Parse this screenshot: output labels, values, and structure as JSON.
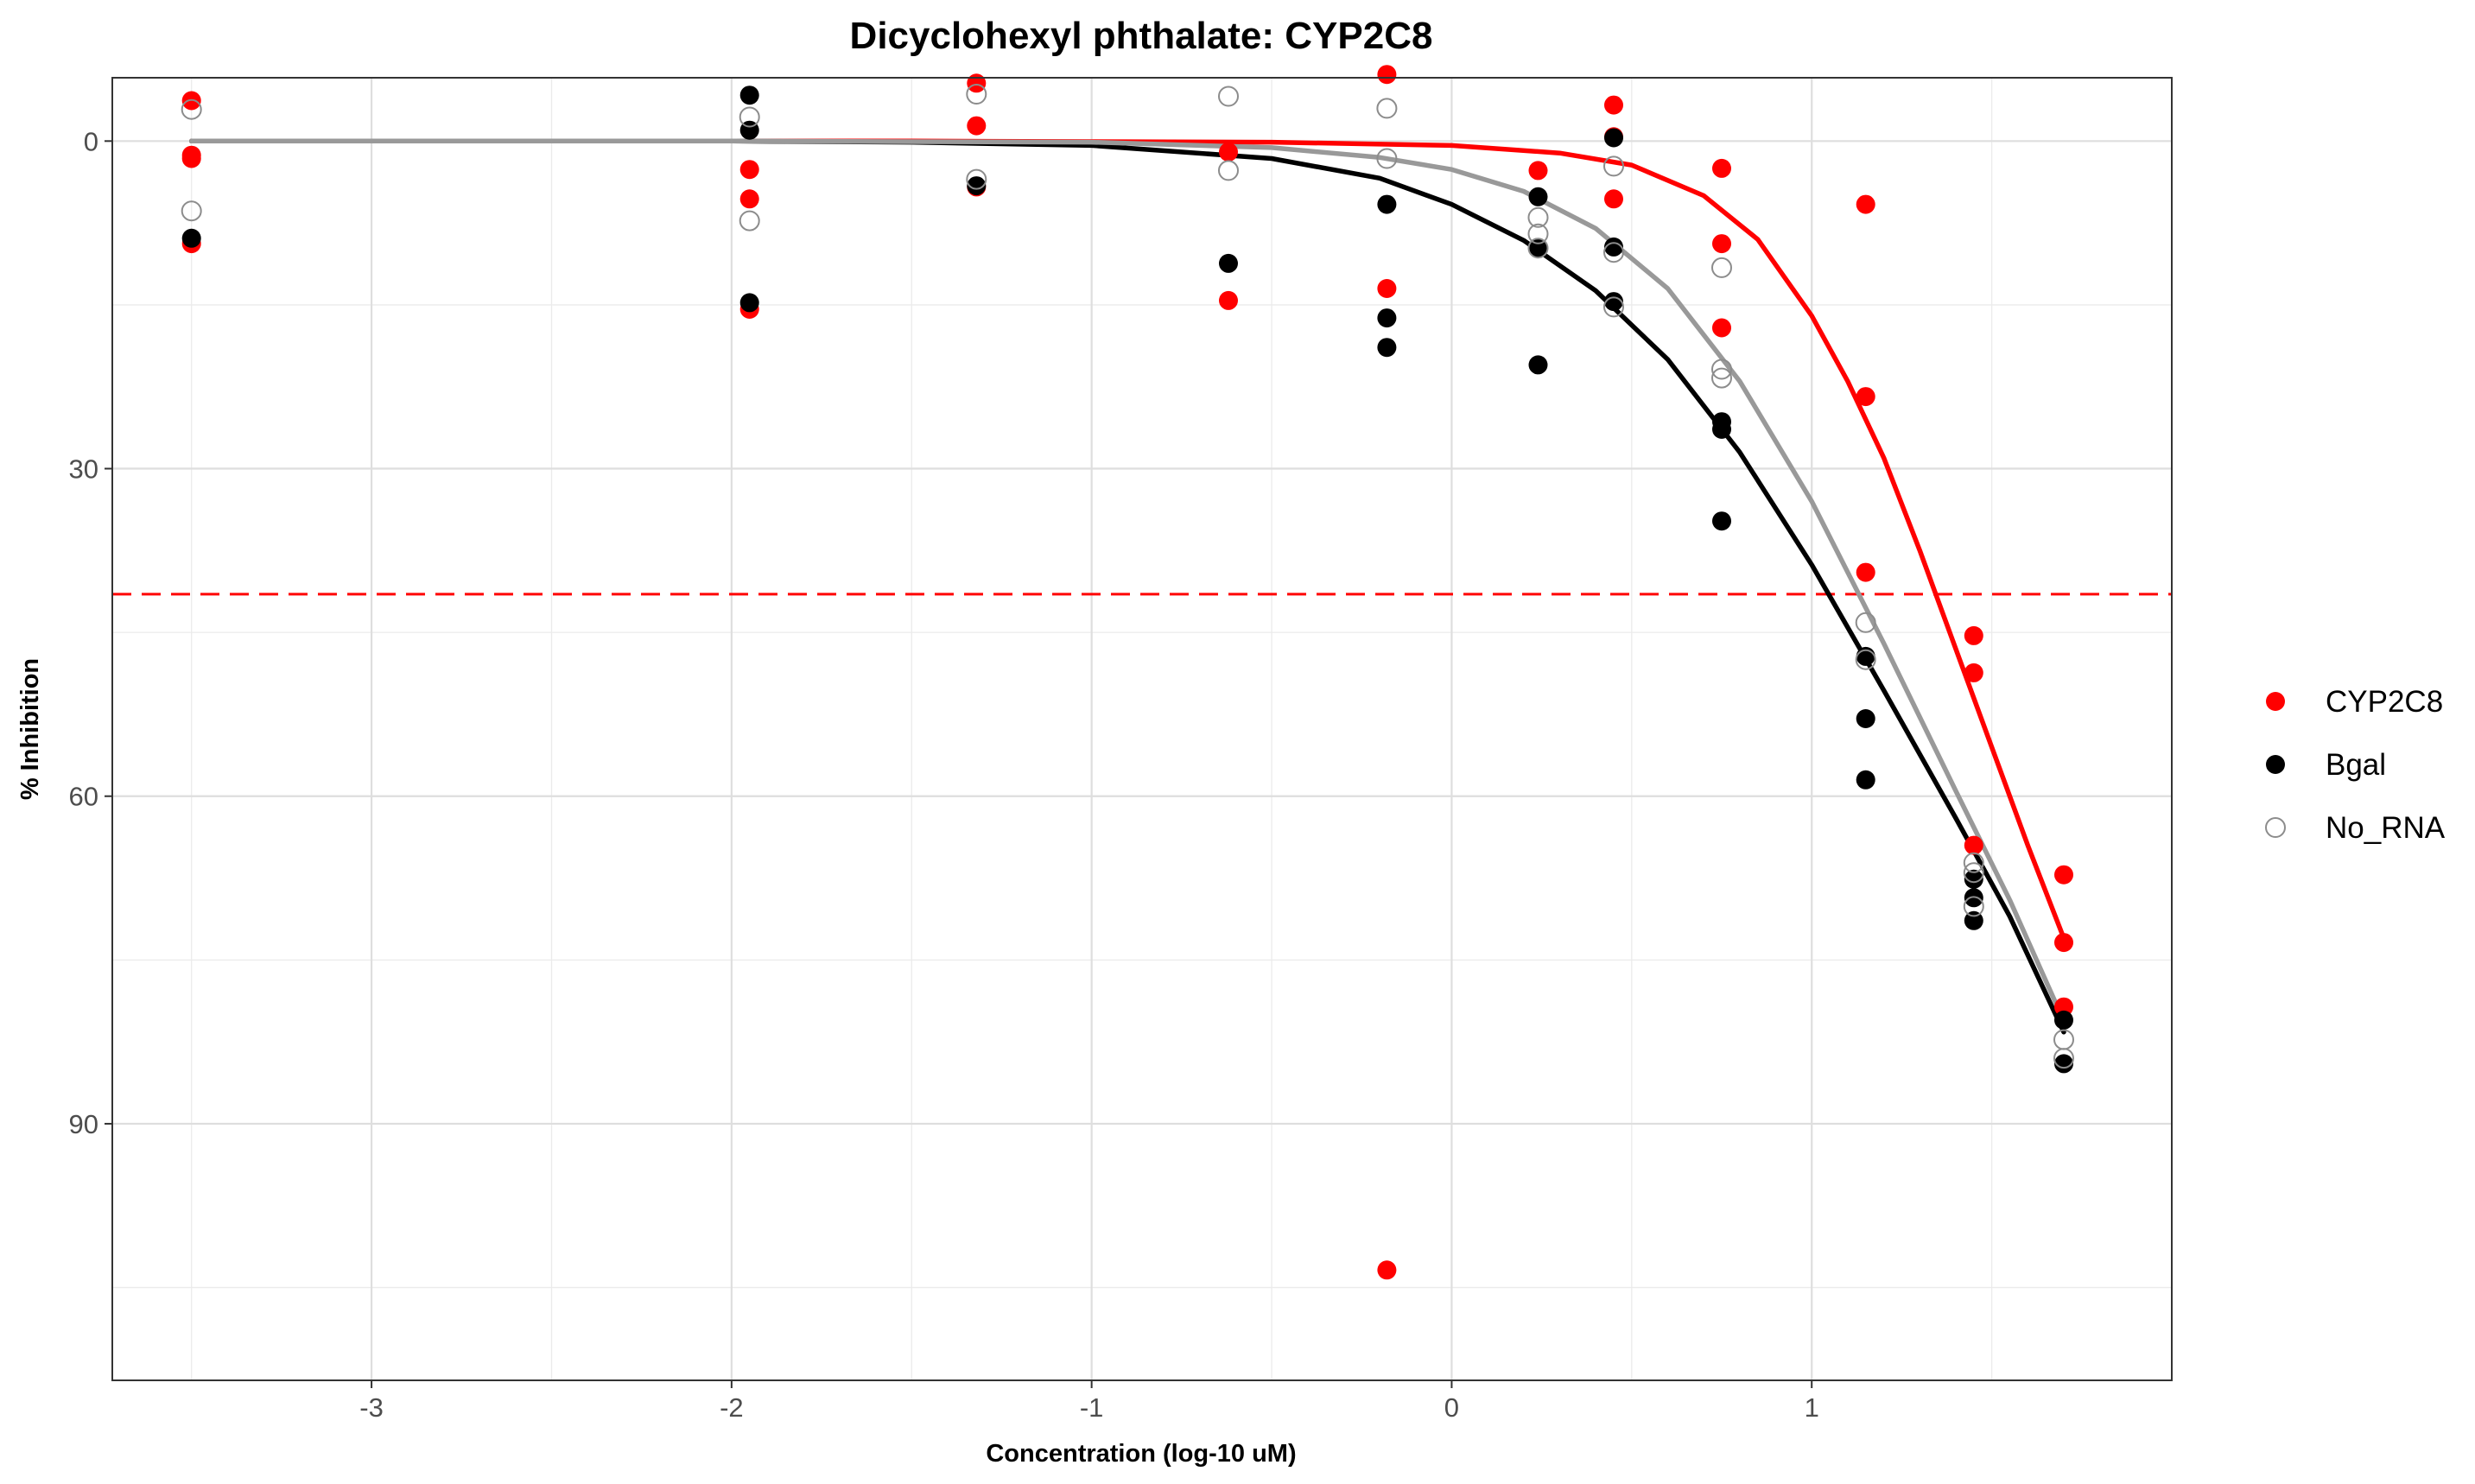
{
  "chart_data": {
    "type": "scatter",
    "title": "Dicyclohexyl phthalate: CYP2C8",
    "xlabel": "Concentration (log-10 uM)",
    "ylabel": "% Inhibition",
    "xlim": [
      -3.72,
      2.0
    ],
    "ylim": [
      -5.8,
      113.5
    ],
    "y_reversed": true,
    "x_ticks": [
      -3,
      -2,
      -1,
      0,
      1
    ],
    "y_ticks": [
      0,
      30,
      60,
      90
    ],
    "grid": true,
    "legend_position": "right",
    "reference_line": {
      "y": 41.5,
      "color": "#ff0000",
      "style": "dashed"
    },
    "series": [
      {
        "name": "CYP2C8",
        "color": "#ff0000",
        "marker": "filled",
        "points": [
          [
            -3.5,
            -3.7
          ],
          [
            -3.5,
            1.6
          ],
          [
            -3.5,
            1.3
          ],
          [
            -3.5,
            9.4
          ],
          [
            -1.95,
            2.6
          ],
          [
            -1.95,
            5.3
          ],
          [
            -1.95,
            15.4
          ],
          [
            -1.32,
            -5.3
          ],
          [
            -1.32,
            -1.4
          ],
          [
            -1.32,
            4.2
          ],
          [
            -0.62,
            1.0
          ],
          [
            -0.62,
            14.6
          ],
          [
            -0.18,
            -6.1
          ],
          [
            -0.18,
            13.5
          ],
          [
            -0.18,
            103.4
          ],
          [
            0.24,
            2.7
          ],
          [
            0.45,
            -3.3
          ],
          [
            0.45,
            -0.4
          ],
          [
            0.45,
            5.3
          ],
          [
            0.75,
            2.5
          ],
          [
            0.75,
            9.4
          ],
          [
            0.75,
            17.1
          ],
          [
            1.15,
            5.8
          ],
          [
            1.15,
            23.4
          ],
          [
            1.15,
            39.5
          ],
          [
            1.45,
            45.3
          ],
          [
            1.45,
            48.7
          ],
          [
            1.45,
            64.5
          ],
          [
            1.7,
            67.2
          ],
          [
            1.7,
            73.4
          ],
          [
            1.7,
            79.3
          ]
        ],
        "fit_curve": [
          [
            -3.5,
            0.0
          ],
          [
            -1.5,
            0.0
          ],
          [
            -0.5,
            0.1
          ],
          [
            0.0,
            0.4
          ],
          [
            0.3,
            1.1
          ],
          [
            0.5,
            2.2
          ],
          [
            0.7,
            5.0
          ],
          [
            0.85,
            9.0
          ],
          [
            1.0,
            16.0
          ],
          [
            1.1,
            22.0
          ],
          [
            1.2,
            29.0
          ],
          [
            1.3,
            37.5
          ],
          [
            1.4,
            46.5
          ],
          [
            1.5,
            55.5
          ],
          [
            1.6,
            64.5
          ],
          [
            1.7,
            73.0
          ]
        ]
      },
      {
        "name": "Bgal",
        "color": "#000000",
        "marker": "filled",
        "points": [
          [
            -3.5,
            8.9
          ],
          [
            -1.95,
            -4.2
          ],
          [
            -1.95,
            -1.0
          ],
          [
            -1.95,
            14.8
          ],
          [
            -1.32,
            4.1
          ],
          [
            -0.62,
            11.2
          ],
          [
            -0.18,
            5.8
          ],
          [
            -0.18,
            16.2
          ],
          [
            -0.18,
            18.9
          ],
          [
            0.24,
            5.1
          ],
          [
            0.24,
            9.8
          ],
          [
            0.24,
            20.5
          ],
          [
            0.45,
            -0.3
          ],
          [
            0.45,
            9.7
          ],
          [
            0.45,
            14.7
          ],
          [
            0.75,
            25.7
          ],
          [
            0.75,
            26.4
          ],
          [
            0.75,
            34.8
          ],
          [
            1.15,
            47.2
          ],
          [
            1.15,
            52.9
          ],
          [
            1.15,
            58.5
          ],
          [
            1.45,
            67.6
          ],
          [
            1.45,
            69.3
          ],
          [
            1.45,
            71.4
          ],
          [
            1.7,
            80.5
          ],
          [
            1.7,
            84.5
          ]
        ],
        "fit_curve": [
          [
            -3.5,
            0.0
          ],
          [
            -2.0,
            0.0
          ],
          [
            -1.5,
            0.1
          ],
          [
            -1.0,
            0.4
          ],
          [
            -0.5,
            1.6
          ],
          [
            -0.2,
            3.4
          ],
          [
            0.0,
            5.8
          ],
          [
            0.2,
            9.1
          ],
          [
            0.4,
            13.7
          ],
          [
            0.6,
            20.0
          ],
          [
            0.8,
            28.5
          ],
          [
            1.0,
            38.8
          ],
          [
            1.2,
            50.3
          ],
          [
            1.4,
            62.0
          ],
          [
            1.55,
            71.0
          ],
          [
            1.7,
            81.6
          ]
        ]
      },
      {
        "name": "No_RNA",
        "color": "#8c8c8c",
        "marker": "hollow",
        "points": [
          [
            -3.5,
            -2.9
          ],
          [
            -3.5,
            6.4
          ],
          [
            -1.95,
            -2.2
          ],
          [
            -1.95,
            7.3
          ],
          [
            -1.32,
            -4.3
          ],
          [
            -1.32,
            3.5
          ],
          [
            -0.62,
            -4.1
          ],
          [
            -0.62,
            2.7
          ],
          [
            -0.18,
            -3.0
          ],
          [
            -0.18,
            1.6
          ],
          [
            0.24,
            7.0
          ],
          [
            0.24,
            8.5
          ],
          [
            0.24,
            9.8
          ],
          [
            0.45,
            2.3
          ],
          [
            0.45,
            10.2
          ],
          [
            0.45,
            15.2
          ],
          [
            0.75,
            11.6
          ],
          [
            0.75,
            20.9
          ],
          [
            0.75,
            21.7
          ],
          [
            1.15,
            44.1
          ],
          [
            1.15,
            47.5
          ],
          [
            1.45,
            66.1
          ],
          [
            1.45,
            67.0
          ],
          [
            1.45,
            70.1
          ],
          [
            1.7,
            82.3
          ],
          [
            1.7,
            84.0
          ]
        ],
        "fit_curve": [
          [
            -3.5,
            0.0
          ],
          [
            -2.0,
            0.0
          ],
          [
            -1.0,
            0.1
          ],
          [
            -0.5,
            0.6
          ],
          [
            -0.2,
            1.5
          ],
          [
            0.0,
            2.6
          ],
          [
            0.2,
            4.6
          ],
          [
            0.4,
            8.0
          ],
          [
            0.6,
            13.5
          ],
          [
            0.8,
            22.0
          ],
          [
            1.0,
            33.0
          ],
          [
            1.2,
            46.0
          ],
          [
            1.4,
            59.5
          ],
          [
            1.55,
            69.5
          ],
          [
            1.7,
            80.6
          ]
        ]
      }
    ]
  }
}
